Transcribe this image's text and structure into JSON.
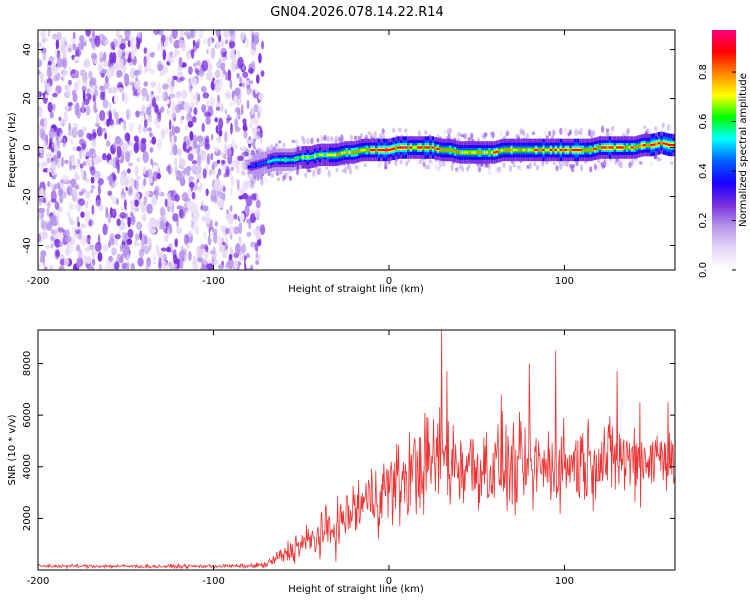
{
  "title": "GN04.2026.078.14.22.R14",
  "chart_data": [
    {
      "type": "heatmap",
      "xlabel": "Height of straight line (km)",
      "ylabel": "Frequency (Hz)",
      "xlim": [
        -200,
        163
      ],
      "ylim": [
        -50,
        48
      ],
      "xticks": [
        "-200",
        "-100",
        "0",
        "100"
      ],
      "yticks": [
        "40",
        "20",
        "0",
        "-20",
        "-40"
      ],
      "colorbar": {
        "label": "Normalized spectral amplitude",
        "range": [
          0,
          0.97
        ],
        "ticks": [
          "0.0",
          "0.2",
          "0.4",
          "0.6",
          "0.8"
        ],
        "colors": [
          "#ffffff",
          "#e6d8f6",
          "#b695ea",
          "#7b2ee0",
          "#1800ff",
          "#0060ff",
          "#00ffff",
          "#00ff00",
          "#ffff00",
          "#ff8800",
          "#ff0000",
          "#ff0080"
        ]
      },
      "noise_region": {
        "x_from": -200,
        "x_to": -72,
        "frequency_span": [
          -50,
          48
        ],
        "typical_amplitude": 0.1
      },
      "signal": {
        "x": [
          -80,
          -75,
          -70,
          -65,
          -60,
          -55,
          -50,
          -45,
          -40,
          -35,
          -30,
          -25,
          -20,
          -15,
          -10,
          -5,
          0,
          5,
          10,
          15,
          20,
          25,
          30,
          35,
          40,
          45,
          50,
          55,
          60,
          65,
          70,
          75,
          80,
          85,
          90,
          95,
          100,
          105,
          110,
          115,
          120,
          125,
          130,
          135,
          140,
          145,
          150,
          155,
          160,
          163
        ],
        "frequency": [
          -8,
          -7,
          -6,
          -5,
          -5,
          -5,
          -4,
          -4,
          -3,
          -3,
          -3,
          -2,
          -2,
          -1,
          -1,
          -1,
          -1,
          0,
          0,
          0,
          0,
          0,
          -1,
          -1,
          -2,
          -2,
          -2,
          -2,
          -2,
          -1,
          -1,
          -1,
          -1,
          -1,
          -1,
          -1,
          -1,
          -1,
          -1,
          -1,
          0,
          0,
          0,
          0,
          0,
          1,
          1,
          2,
          1,
          1
        ],
        "peak_amplitude": [
          0.35,
          0.45,
          0.5,
          0.55,
          0.6,
          0.6,
          0.65,
          0.7,
          0.7,
          0.75,
          0.8,
          0.8,
          0.85,
          0.85,
          0.9,
          0.9,
          0.9,
          0.9,
          0.9,
          0.85,
          0.9,
          0.9,
          0.85,
          0.85,
          0.8,
          0.8,
          0.8,
          0.8,
          0.85,
          0.85,
          0.85,
          0.8,
          0.8,
          0.85,
          0.85,
          0.85,
          0.85,
          0.9,
          0.9,
          0.85,
          0.85,
          0.85,
          0.85,
          0.85,
          0.85,
          0.9,
          0.9,
          0.9,
          0.9,
          0.9
        ]
      }
    },
    {
      "type": "line",
      "xlabel": "Height of straight line (km)",
      "ylabel": "SNR (10 * v/v)",
      "xlim": [
        -200,
        163
      ],
      "ylim": [
        0,
        9300
      ],
      "xticks": [
        "-200",
        "-100",
        "0",
        "100"
      ],
      "yticks": [
        "8000",
        "6000",
        "4000",
        "2000"
      ],
      "series": [
        {
          "color": "#ee3333",
          "x": [
            -200,
            -180,
            -160,
            -140,
            -120,
            -100,
            -80,
            -70,
            -65,
            -60,
            -55,
            -50,
            -45,
            -40,
            -35,
            -30,
            -25,
            -20,
            -15,
            -10,
            -5,
            0,
            5,
            10,
            15,
            20,
            25,
            30,
            35,
            40,
            50,
            60,
            70,
            80,
            90,
            100,
            110,
            120,
            130,
            140,
            150,
            160,
            163
          ],
          "values": [
            150,
            150,
            150,
            140,
            140,
            150,
            150,
            200,
            400,
            600,
            800,
            1000,
            1100,
            1300,
            1500,
            1700,
            2000,
            2300,
            2600,
            2800,
            3000,
            3200,
            3300,
            3600,
            3900,
            4100,
            4200,
            4400,
            4200,
            4100,
            4000,
            4000,
            3900,
            3900,
            4000,
            4100,
            4200,
            4300,
            4300,
            4300,
            4350,
            4400,
            4400
          ],
          "spread": [
            80,
            80,
            80,
            80,
            80,
            80,
            80,
            150,
            300,
            450,
            600,
            700,
            800,
            900,
            1000,
            1100,
            1200,
            1300,
            1400,
            1500,
            1600,
            1700,
            1800,
            1900,
            2000,
            2100,
            2100,
            2100,
            2100,
            2000,
            1900,
            1900,
            1900,
            1900,
            1800,
            1800,
            1800,
            1700,
            1700,
            1700,
            1700,
            1700,
            1700
          ],
          "spikes": [
            [
              30,
              9300
            ],
            [
              33,
              7700
            ],
            [
              64,
              6800
            ],
            [
              80,
              8000
            ],
            [
              95,
              8500
            ],
            [
              130,
              7700
            ],
            [
              143,
              6500
            ],
            [
              159,
              6500
            ]
          ]
        }
      ]
    }
  ]
}
